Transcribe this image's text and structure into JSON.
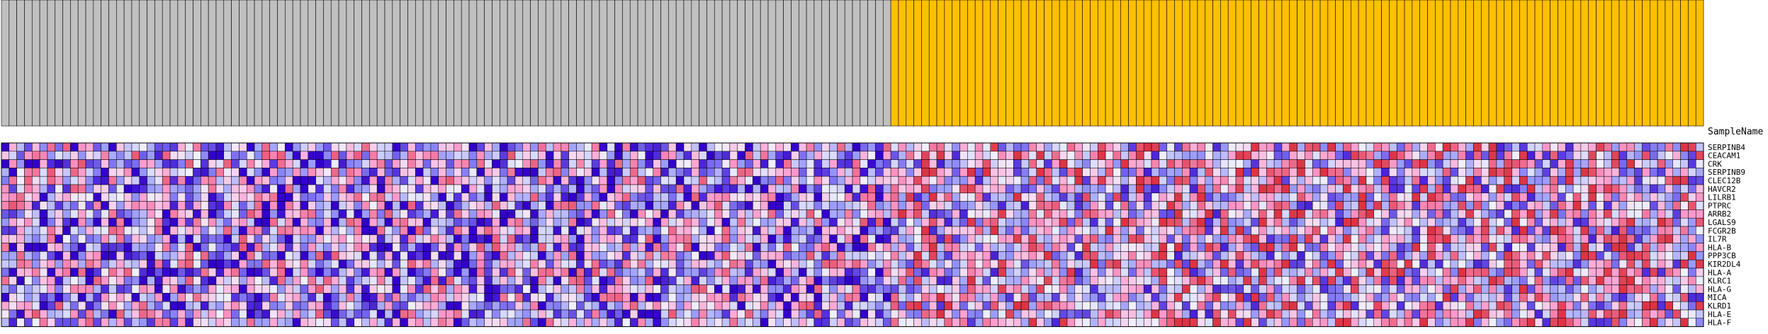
{
  "chart_data": {
    "type": "heatmap",
    "row_header_label": "SampleName",
    "rows": [
      "SERPINB4",
      "CEACAM1",
      "CRK",
      "SERPINB9",
      "CLEC12B",
      "HAVCR2",
      "LILRB1",
      "PTPRC",
      "ARRB2",
      "LGALS9",
      "FCGR2B",
      "IL7R",
      "HLA-B",
      "PPP3CB",
      "KIR2DL4",
      "HLA-A",
      "KLRC1",
      "HLA-G",
      "MICA",
      "KLRD1",
      "HLA-E",
      "HLA-F"
    ],
    "group_colors": {
      "group_a": "#c0c0c0",
      "group_b": "#ffc000"
    },
    "column_groups": [
      {
        "group": "group_a",
        "count": 116
      },
      {
        "group": "group_b",
        "count": 106
      }
    ],
    "colorscale": {
      "low": "#3300cc",
      "mid_low": "#9999ff",
      "mid": "#f0f0ff",
      "mid_high": "#ff99cc",
      "high": "#dd3344"
    },
    "value_range": [
      -2,
      2
    ]
  }
}
